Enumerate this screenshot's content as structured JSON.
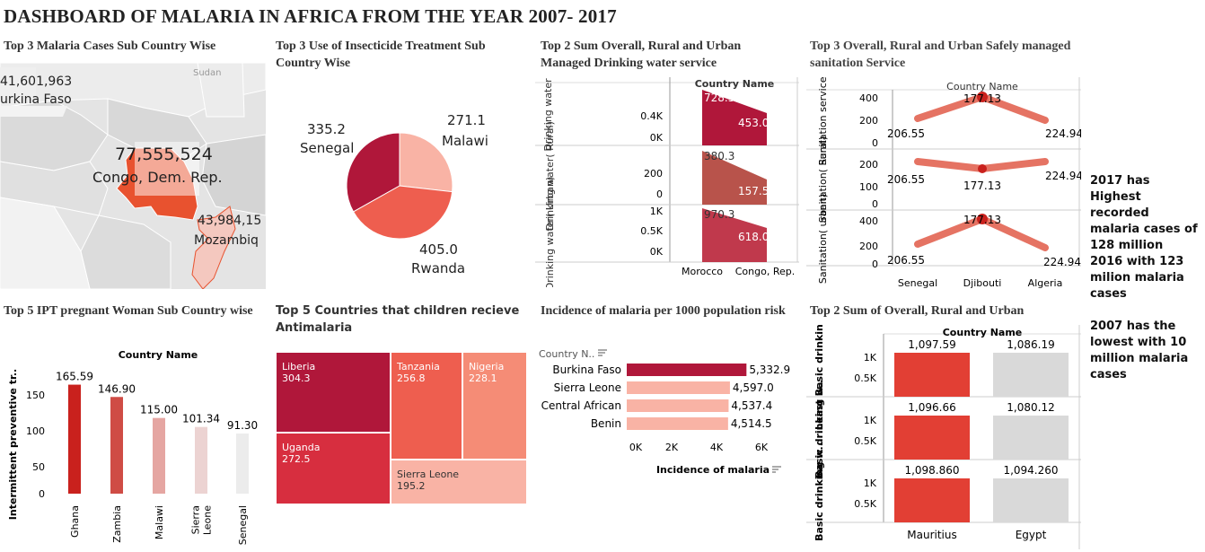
{
  "title": "DASHBOARD OF MALARIA IN AFRICA FROM THE YEAR 2007- 2017",
  "map": {
    "title": "Top 3 Malaria Cases Sub Country Wise",
    "sudan": "Sudan",
    "burkina_value": "41,601,963",
    "burkina_name": "urkina Faso",
    "congo_value": "77,555,524",
    "congo_name": "Congo, Dem. Rep.",
    "moz_value": "43,984,15",
    "moz_name": "Mozambiq"
  },
  "pie": {
    "title": "Top 3 Use of Insecticide Treatment Sub Country Wise",
    "slices": [
      {
        "name": "Senegal",
        "value": "335.2",
        "num": 335.2,
        "color": "#b0173a"
      },
      {
        "name": "Malawi",
        "value": "271.1",
        "num": 271.1,
        "color": "#f9b3a5"
      },
      {
        "name": "Rwanda",
        "value": "405.0",
        "num": 405.0,
        "color": "#ee5e4f"
      }
    ]
  },
  "water": {
    "title": "Top 2 Sum Overall, Rural and Urban Managed Drinking water service",
    "header": "Country Name",
    "rows": [
      {
        "label": "Drinking water",
        "ticks": [
          "0.4K",
          "0K"
        ],
        "v1": "728.5",
        "v2": "453.0",
        "color": "#b0173a"
      },
      {
        "label": "Drinking water( Rural)",
        "ticks": [
          "200",
          "0"
        ],
        "v1": "380.3",
        "v2": "157.5",
        "color": "#b8534b"
      },
      {
        "label": "Drinking water( Urban)",
        "ticks": [
          "1K",
          "0.5K",
          "0K"
        ],
        "v1": "970.3",
        "v2": "618.0",
        "color": "#c0394c"
      }
    ],
    "x_labels": [
      "Morocco",
      "Congo, Rep."
    ]
  },
  "sanitation": {
    "title": "Top 3 Overall, Rural and Urban Safely managed sanitation Service",
    "header": "Country Name",
    "rows": [
      {
        "label": "Sanitation services",
        "ticks": [
          "400",
          "200",
          "0"
        ],
        "values": [
          "206.55",
          "177.13",
          "224.94"
        ]
      },
      {
        "label": "Sanitation( Rural)",
        "ticks": [
          "200",
          "100",
          "0"
        ],
        "values": [
          "206.55",
          "177.13",
          "224.94"
        ]
      },
      {
        "label": "Sanitation( urban)",
        "ticks": [
          "400",
          "200",
          "0"
        ],
        "values": [
          "206.55",
          "177.13",
          "224.94"
        ]
      }
    ],
    "x_labels": [
      "Senegal",
      "Djibouti",
      "Algeria"
    ]
  },
  "ipt": {
    "title": "Top 5 IPT pregnant Woman Sub Country wise",
    "header": "Country Name",
    "ylabel": "Intermittent preventive tr..",
    "ticks": [
      "150",
      "100",
      "50",
      "0"
    ]
  },
  "treemap": {
    "title": "Top 5 Countries that children recieve Antimalaria",
    "cells": [
      {
        "name": "Liberia",
        "value": "304.3"
      },
      {
        "name": "Tanzania",
        "value": "256.8"
      },
      {
        "name": "Nigeria",
        "value": "228.1"
      },
      {
        "name": "Uganda",
        "value": "272.5"
      },
      {
        "name": "Sierra Leone",
        "value": "195.2"
      }
    ]
  },
  "incidence": {
    "title": "Incidence of malaria per 1000 population risk",
    "header": "Country N..",
    "rows": [
      {
        "name": "Burkina Faso",
        "value": "5,332.9",
        "num": 5332.9,
        "color": "#b0173a"
      },
      {
        "name": "Sierra Leone",
        "value": "4,597.0",
        "num": 4597.0,
        "color": "#f9b3a5"
      },
      {
        "name": "Central African",
        "value": "4,537.4",
        "num": 4537.4,
        "color": "#f9b3a5"
      },
      {
        "name": "Benin",
        "value": "4,514.5",
        "num": 4514.5,
        "color": "#f9b3a5"
      }
    ],
    "ticks": [
      "0K",
      "2K",
      "4K",
      "6K"
    ],
    "xlabel": "Incidence of malaria"
  },
  "basic": {
    "title": "Top 2 Sum of Overall, Rural and Urban",
    "header": "Country Name",
    "rows": [
      {
        "label": "Least Basic drinking ..",
        "ticks": [
          "1K",
          "0.5K"
        ],
        "v1": "1,097.59",
        "v2": "1,086.19"
      },
      {
        "label": "Basic drinking w..",
        "ticks": [
          "1K",
          "0.5K"
        ],
        "v1": "1,096.66",
        "v2": "1,080.12"
      },
      {
        "label": "Basic drinking w..",
        "ticks": [
          "1K",
          "0.5K"
        ],
        "v1": "1,098.860",
        "v2": "1,094.260"
      }
    ],
    "x_labels": [
      "Mauritius",
      "Egypt"
    ]
  },
  "notes": [
    "2017 has Highest recorded malaria cases of 128 million",
    "2016 with 123 milion malaria cases",
    "2007 has the lowest with 10 million malaria cases"
  ],
  "chart_data": [
    {
      "type": "bar",
      "title": "Top 5 IPT pregnant Woman Sub Country wise",
      "xlabel": "Country Name",
      "ylabel": "Intermittent preventive tr..",
      "categories": [
        "Ghana",
        "Zambia",
        "Malawi",
        "Sierra Leone",
        "Senegal"
      ],
      "values": [
        165.59,
        146.9,
        115.0,
        101.34,
        91.3
      ],
      "value_labels": [
        "165.59",
        "146.90",
        "115.00",
        "101.34",
        "91.30"
      ],
      "colors": [
        "#c9211d",
        "#cf4c45",
        "#e5a6a2",
        "#ecd3d2",
        "#ececec"
      ],
      "ylim": [
        0,
        175
      ],
      "grid": false
    }
  ]
}
